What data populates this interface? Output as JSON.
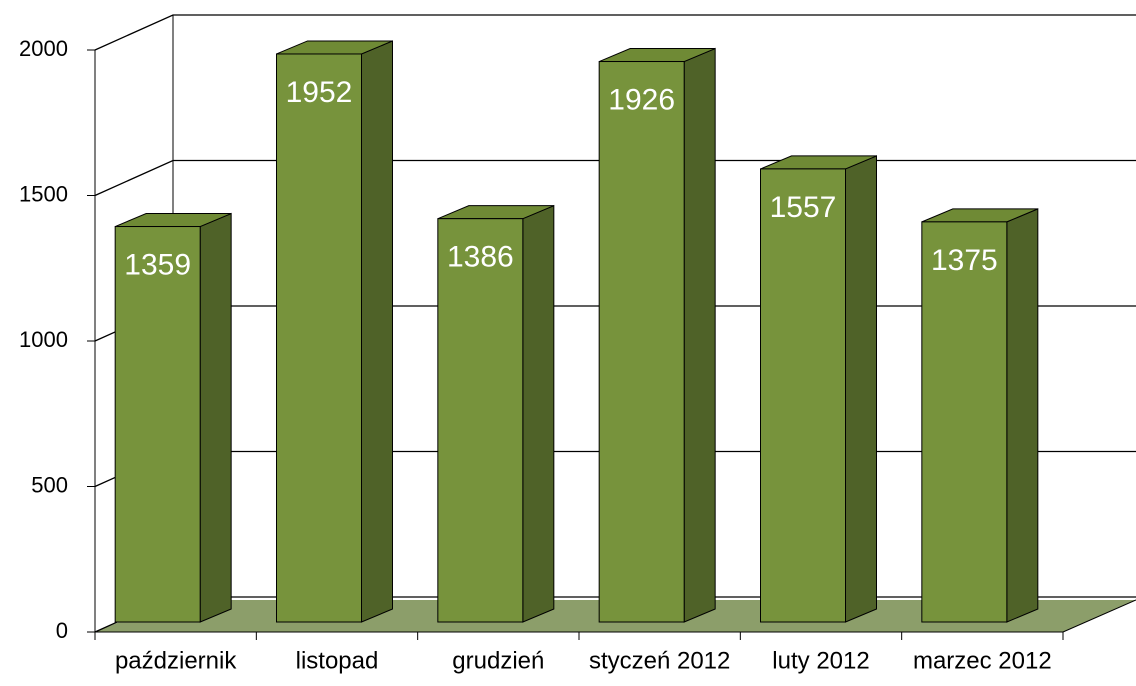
{
  "chart_data": {
    "type": "bar3d",
    "categories": [
      "październik",
      "listopad",
      "grudzień",
      "styczeń 2012",
      "luty 2012",
      "marzec 2012"
    ],
    "values": [
      1359,
      1952,
      1386,
      1926,
      1557,
      1375
    ],
    "color": "#77933c",
    "ylim": [
      0,
      2000
    ],
    "yticks": [
      0,
      500,
      1000,
      1500,
      2000
    ],
    "grid": true
  }
}
